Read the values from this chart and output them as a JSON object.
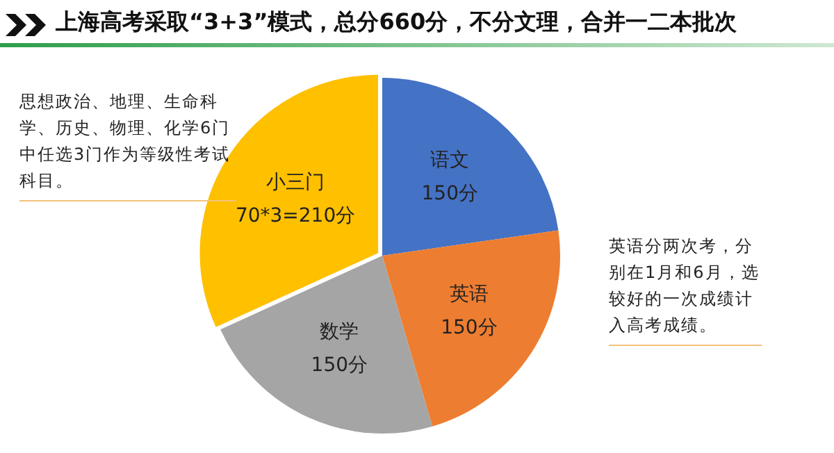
{
  "chart_data": {
    "type": "pie",
    "title": "上海高考采取“3+3”模式，总分660分，不分文理，合并一二本批次",
    "categories": [
      "语文",
      "英语",
      "数学",
      "小三门"
    ],
    "values": [
      150,
      150,
      150,
      210
    ],
    "colors": [
      "#4472c4",
      "#ed7d31",
      "#a5a5a5",
      "#ffc000"
    ],
    "value_labels": [
      "150分",
      "150分",
      "150分",
      "70*3=210分"
    ],
    "legend": false,
    "annotations": [
      "思想政治、地理、生命科学、历史、物理、化学6门中任选3门作为等级性考试科目。",
      "英语分两次考，分别在1月和6月，选较好的一次成绩计入高考成绩。"
    ]
  }
}
